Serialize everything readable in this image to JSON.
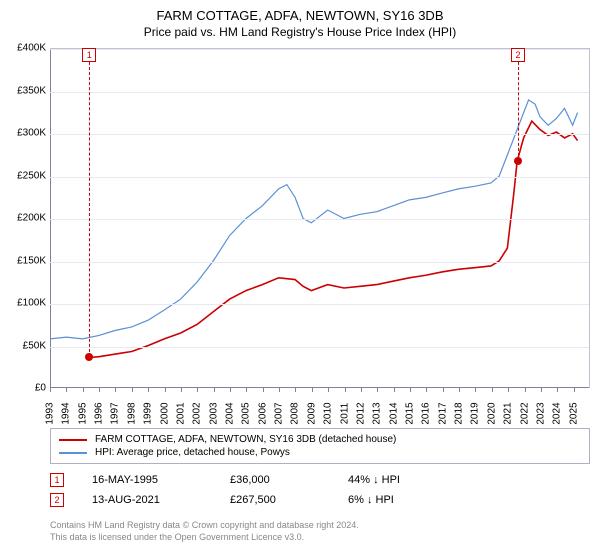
{
  "title": "FARM COTTAGE, ADFA, NEWTOWN, SY16 3DB",
  "subtitle": "Price paid vs. HM Land Registry's House Price Index (HPI)",
  "chart": {
    "type": "line",
    "background_color": "#ffffff",
    "grid_color": "#e8e8f0",
    "axis_color": "#8080a0",
    "border_color": "#c0c0d0",
    "y": {
      "min": 0,
      "max": 400000,
      "tick_step": 50000,
      "ticks": [
        "£0",
        "£50K",
        "£100K",
        "£150K",
        "£200K",
        "£250K",
        "£300K",
        "£350K",
        "£400K"
      ],
      "label_fontsize": 10
    },
    "x": {
      "min": 1993,
      "max": 2026,
      "ticks": [
        1993,
        1994,
        1995,
        1996,
        1997,
        1998,
        1999,
        2000,
        2001,
        2002,
        2003,
        2004,
        2005,
        2006,
        2007,
        2008,
        2009,
        2010,
        2011,
        2012,
        2013,
        2014,
        2015,
        2016,
        2017,
        2018,
        2019,
        2020,
        2021,
        2022,
        2023,
        2024,
        2025
      ],
      "label_fontsize": 10,
      "rotation": -90
    },
    "series": [
      {
        "name": "FARM COTTAGE, ADFA, NEWTOWN, SY16 3DB (detached house)",
        "color": "#cc0000",
        "line_width": 1.6,
        "data": [
          [
            1995.4,
            36000
          ],
          [
            1996,
            37000
          ],
          [
            1997,
            40000
          ],
          [
            1998,
            43000
          ],
          [
            1999,
            50000
          ],
          [
            2000,
            58000
          ],
          [
            2001,
            65000
          ],
          [
            2002,
            75000
          ],
          [
            2003,
            90000
          ],
          [
            2004,
            105000
          ],
          [
            2005,
            115000
          ],
          [
            2006,
            122000
          ],
          [
            2007,
            130000
          ],
          [
            2008,
            128000
          ],
          [
            2008.5,
            120000
          ],
          [
            2009,
            115000
          ],
          [
            2010,
            122000
          ],
          [
            2011,
            118000
          ],
          [
            2012,
            120000
          ],
          [
            2013,
            122000
          ],
          [
            2014,
            126000
          ],
          [
            2015,
            130000
          ],
          [
            2016,
            133000
          ],
          [
            2017,
            137000
          ],
          [
            2018,
            140000
          ],
          [
            2019,
            142000
          ],
          [
            2020,
            144000
          ],
          [
            2020.5,
            150000
          ],
          [
            2021,
            165000
          ],
          [
            2021.4,
            230000
          ],
          [
            2021.6,
            267500
          ],
          [
            2022,
            295000
          ],
          [
            2022.5,
            315000
          ],
          [
            2023,
            305000
          ],
          [
            2023.5,
            298000
          ],
          [
            2024,
            302000
          ],
          [
            2024.5,
            295000
          ],
          [
            2025,
            300000
          ],
          [
            2025.3,
            292000
          ]
        ]
      },
      {
        "name": "HPI: Average price, detached house, Powys",
        "color": "#5b8fd6",
        "line_width": 1.2,
        "data": [
          [
            1993,
            58000
          ],
          [
            1994,
            60000
          ],
          [
            1995,
            58000
          ],
          [
            1996,
            62000
          ],
          [
            1997,
            68000
          ],
          [
            1998,
            72000
          ],
          [
            1999,
            80000
          ],
          [
            2000,
            92000
          ],
          [
            2001,
            105000
          ],
          [
            2002,
            125000
          ],
          [
            2003,
            150000
          ],
          [
            2004,
            180000
          ],
          [
            2005,
            200000
          ],
          [
            2006,
            215000
          ],
          [
            2007,
            235000
          ],
          [
            2007.5,
            240000
          ],
          [
            2008,
            225000
          ],
          [
            2008.5,
            200000
          ],
          [
            2009,
            195000
          ],
          [
            2010,
            210000
          ],
          [
            2011,
            200000
          ],
          [
            2012,
            205000
          ],
          [
            2013,
            208000
          ],
          [
            2014,
            215000
          ],
          [
            2015,
            222000
          ],
          [
            2016,
            225000
          ],
          [
            2017,
            230000
          ],
          [
            2018,
            235000
          ],
          [
            2019,
            238000
          ],
          [
            2020,
            242000
          ],
          [
            2020.5,
            250000
          ],
          [
            2021,
            275000
          ],
          [
            2021.5,
            300000
          ],
          [
            2022,
            325000
          ],
          [
            2022.3,
            340000
          ],
          [
            2022.7,
            335000
          ],
          [
            2023,
            320000
          ],
          [
            2023.5,
            310000
          ],
          [
            2024,
            318000
          ],
          [
            2024.5,
            330000
          ],
          [
            2025,
            310000
          ],
          [
            2025.3,
            325000
          ]
        ]
      }
    ],
    "markers": [
      {
        "num": "1",
        "year": 1995.4,
        "price": 36000
      },
      {
        "num": "2",
        "year": 2021.6,
        "price": 267500
      }
    ]
  },
  "legend": {
    "border_color": "#b0b0c0",
    "items": [
      {
        "color": "#cc0000",
        "label": "FARM COTTAGE, ADFA, NEWTOWN, SY16 3DB (detached house)"
      },
      {
        "color": "#5b8fd6",
        "label": "HPI: Average price, detached house, Powys"
      }
    ]
  },
  "data_points": [
    {
      "num": "1",
      "date": "16-MAY-1995",
      "price": "£36,000",
      "delta": "44% ↓ HPI"
    },
    {
      "num": "2",
      "date": "13-AUG-2021",
      "price": "£267,500",
      "delta": "6% ↓ HPI"
    }
  ],
  "footer": {
    "line1": "Contains HM Land Registry data © Crown copyright and database right 2024.",
    "line2": "This data is licensed under the Open Government Licence v3.0."
  }
}
